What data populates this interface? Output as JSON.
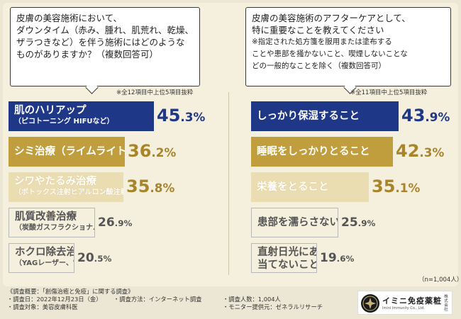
{
  "left_panel": {
    "question_lines": [
      "皮膚の美容施術において、",
      "ダウンタイム（赤み、腫れ、肌荒れ、乾燥、",
      "ザラつきなど）を伴う施術にはどのような",
      "ものがありますか？（複数回答可）"
    ],
    "note": "※全12項目中上位5項目抜粋"
  },
  "right_panel": {
    "question_lines": [
      "皮膚の美容施術のアフターケアとして、",
      "特に重要なことを教えてください",
      "※指定された処方箋を服用または塗布する",
      "ことや患部を掻かないこと、喫煙しないことな",
      "どの一般的なことを除く（複数回答可）"
    ],
    "note": "※全11項目中上位5項目抜粋"
  },
  "sample_size": "（n=1,004人）",
  "chart_data": [
    {
      "type": "bar",
      "orientation": "horizontal",
      "title": "",
      "unit": "%",
      "categories": [
        "肌のハリアップ（ピコトーニング HIFUなど）",
        "シミ治療（ライムライトなど）",
        "シワやたるみ治療（ボトックス注射ヒアルロン酸注射など）",
        "肌質改善治療（炭酸ガスフラクショナル炭酸ガスレーザーなど）",
        "ホクロ除去治療（YAGレーザー、電気焼灼法など）"
      ],
      "label_main": [
        "肌のハリアップ",
        "シミ治療（ライムライトなど）",
        "シワやたるみ治療",
        "肌質改善治療",
        "ホクロ除去治療"
      ],
      "label_sub": [
        "（ピコトーニング HIFUなど）",
        "",
        "（ボトックス注射ヒアルロン酸注射など）",
        "（炭酸ガスフラクショナル炭酸ガスレーザーなど）",
        "（YAGレーザー、電気焼灼法など）"
      ],
      "values": [
        45.3,
        36.2,
        35.8,
        26.9,
        20.5
      ],
      "value_labels": [
        {
          "int": "45",
          "dec": "3",
          "unit": "%"
        },
        {
          "int": "36",
          "dec": "2",
          "unit": "%"
        },
        {
          "int": "35",
          "dec": "8",
          "unit": "%"
        },
        {
          "int": "26",
          "dec": "9",
          "unit": "%"
        },
        {
          "int": "20",
          "dec": "5",
          "unit": "%"
        }
      ],
      "bar_styles": [
        "dark",
        "gold",
        "pale",
        "outline",
        "outline"
      ],
      "colors": {
        "dark": "#1f3787",
        "gold": "#c09d3d",
        "pale": "#ebddb2",
        "outline": "#b8b8b8"
      }
    },
    {
      "type": "bar",
      "orientation": "horizontal",
      "title": "",
      "unit": "%",
      "categories": [
        "しっかり保湿すること",
        "睡眠をしっかりとること",
        "栄養をとること",
        "患部を濡らさないこと",
        "直射日光にあまり当てないこと"
      ],
      "label_main": [
        "しっかり保湿すること",
        "睡眠をしっかりとること",
        "栄養をとること",
        "患部を濡らさないこと",
        "直射日光にあまり"
      ],
      "label_sub": [
        "",
        "",
        "",
        "",
        "当てないこと"
      ],
      "values": [
        43.9,
        42.3,
        35.1,
        25.9,
        19.6
      ],
      "value_labels": [
        {
          "int": "43",
          "dec": "9",
          "unit": "%"
        },
        {
          "int": "42",
          "dec": "3",
          "unit": "%"
        },
        {
          "int": "35",
          "dec": "1",
          "unit": "%"
        },
        {
          "int": "25",
          "dec": "9",
          "unit": "%"
        },
        {
          "int": "19",
          "dec": "6",
          "unit": "%"
        }
      ],
      "bar_styles": [
        "dark",
        "gold",
        "pale",
        "outline",
        "outline"
      ],
      "colors": {
        "dark": "#1f3787",
        "gold": "#c09d3d",
        "pale": "#ebddb2",
        "outline": "#b8b8b8"
      }
    }
  ],
  "footer": {
    "heading": "《調査概要：「創傷治癒と免疫」に関する調査》",
    "date": "・調査日：2022年12月23日（金）",
    "method": "・調査方法：インターネット調査",
    "people": "・調査人数：1,004人",
    "target": "・調査対象：美容皮膚科医",
    "monitor": "・モニター提供元：ゼネラルリサーチ"
  },
  "logo": {
    "name": "イミニ免疫薬粧",
    "sub": "Imini Immunity Co., Ltd.",
    "side": "株式会社"
  }
}
